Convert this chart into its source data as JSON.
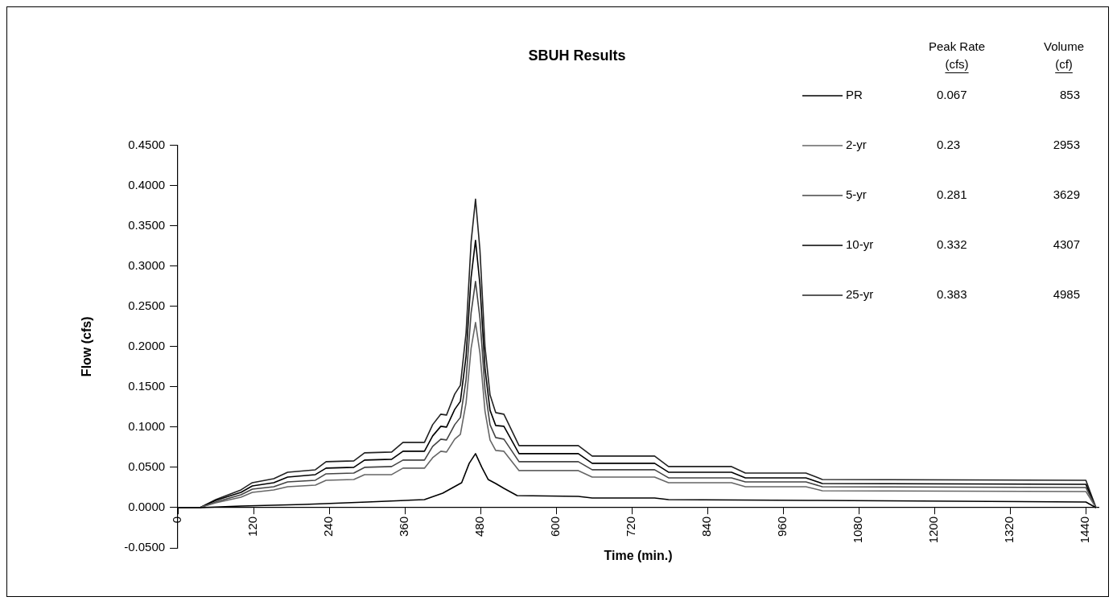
{
  "chart_data": {
    "type": "line",
    "title": "SBUH Results",
    "xlabel": "Time (min.)",
    "ylabel": "Flow (cfs)",
    "x": [
      0,
      35,
      60,
      100,
      118,
      152,
      174,
      218,
      235,
      279,
      296,
      339,
      357,
      391,
      404,
      417,
      426,
      439,
      448,
      457,
      465,
      472,
      479,
      487,
      495,
      504,
      517,
      541,
      635,
      657,
      756,
      778,
      878,
      900,
      996,
      1022,
      1440,
      1456
    ],
    "series": [
      {
        "name": "PR",
        "color": "#000000",
        "x": [
          0,
          35,
          100,
          200,
          300,
          391,
          420,
          450,
          462,
          472,
          482,
          492,
          504,
          517,
          538,
          635,
          657,
          756,
          778,
          1000,
          1440,
          1456
        ],
        "values": [
          0,
          0,
          0.002,
          0.004,
          0.007,
          0.01,
          0.018,
          0.031,
          0.055,
          0.067,
          0.05,
          0.035,
          0.03,
          0.024,
          0.015,
          0.014,
          0.012,
          0.012,
          0.01,
          0.009,
          0.007,
          0
        ]
      },
      {
        "name": "2-yr",
        "color": "#666666",
        "values": [
          0,
          0,
          0.006,
          0.013,
          0.019,
          0.022,
          0.026,
          0.028,
          0.034,
          0.035,
          0.041,
          0.041,
          0.049,
          0.049,
          0.062,
          0.07,
          0.069,
          0.085,
          0.091,
          0.13,
          0.198,
          0.23,
          0.192,
          0.12,
          0.084,
          0.071,
          0.07,
          0.046,
          0.046,
          0.038,
          0.038,
          0.031,
          0.031,
          0.026,
          0.026,
          0.021,
          0.02,
          0
        ]
      },
      {
        "name": "5-yr",
        "color": "#444444",
        "values": [
          0,
          0,
          0.007,
          0.016,
          0.023,
          0.026,
          0.032,
          0.034,
          0.042,
          0.043,
          0.05,
          0.051,
          0.059,
          0.059,
          0.076,
          0.085,
          0.084,
          0.103,
          0.112,
          0.159,
          0.242,
          0.281,
          0.235,
          0.147,
          0.103,
          0.087,
          0.085,
          0.057,
          0.057,
          0.047,
          0.047,
          0.037,
          0.037,
          0.032,
          0.032,
          0.026,
          0.025,
          0
        ]
      },
      {
        "name": "10-yr",
        "color": "#000000",
        "values": [
          0,
          0,
          0.009,
          0.019,
          0.027,
          0.031,
          0.038,
          0.041,
          0.049,
          0.05,
          0.059,
          0.06,
          0.07,
          0.07,
          0.089,
          0.101,
          0.1,
          0.122,
          0.132,
          0.188,
          0.286,
          0.332,
          0.277,
          0.173,
          0.121,
          0.102,
          0.101,
          0.067,
          0.067,
          0.055,
          0.055,
          0.044,
          0.044,
          0.037,
          0.037,
          0.03,
          0.029,
          0
        ]
      },
      {
        "name": "25-yr",
        "color": "#222222",
        "values": [
          0,
          0,
          0.01,
          0.022,
          0.031,
          0.036,
          0.044,
          0.047,
          0.057,
          0.058,
          0.068,
          0.069,
          0.081,
          0.081,
          0.103,
          0.116,
          0.115,
          0.141,
          0.152,
          0.217,
          0.33,
          0.383,
          0.32,
          0.2,
          0.14,
          0.118,
          0.116,
          0.077,
          0.077,
          0.064,
          0.064,
          0.051,
          0.051,
          0.043,
          0.043,
          0.035,
          0.034,
          0
        ]
      }
    ],
    "xlim": [
      0,
      1460
    ],
    "xticks": [
      0,
      120,
      240,
      360,
      480,
      600,
      720,
      840,
      960,
      1080,
      1200,
      1320,
      1440
    ],
    "ylim": [
      -0.05,
      0.45
    ],
    "yticks": [
      {
        "value": -0.05,
        "label": "-0.0500"
      },
      {
        "value": 0,
        "label": "0.0000"
      },
      {
        "value": 0.05,
        "label": "0.0500"
      },
      {
        "value": 0.1,
        "label": "0.1000"
      },
      {
        "value": 0.15,
        "label": "0.1500"
      },
      {
        "value": 0.2,
        "label": "0.2000"
      },
      {
        "value": 0.25,
        "label": "0.2500"
      },
      {
        "value": 0.3,
        "label": "0.3000"
      },
      {
        "value": 0.35,
        "label": "0.3500"
      },
      {
        "value": 0.4,
        "label": "0.4000"
      },
      {
        "value": 0.45,
        "label": "0.4500"
      }
    ],
    "grid": false,
    "legend": "top right",
    "marker": "none",
    "line_style": "solid",
    "annotations": [
      "Peak Rate (cfs)",
      "Volume (cf)",
      "0.067",
      "853",
      "0.23",
      "2953",
      "0.281",
      "3629",
      "0.332",
      "4307",
      "0.383",
      "4985"
    ]
  }
}
